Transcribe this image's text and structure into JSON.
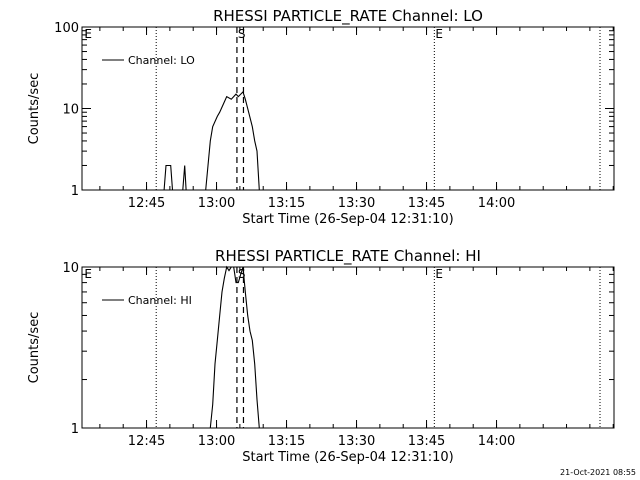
{
  "figure": {
    "footer_timestamp": "21-Oct-2021 08:55",
    "background": "#ffffff",
    "foreground": "#000000"
  },
  "chart_data": [
    {
      "type": "line",
      "title": "RHESSI PARTICLE_RATE Channel: LO",
      "xlabel": "Start Time (26-Sep-04 12:31:10)",
      "ylabel": "Counts/sec",
      "x_unit": "minutes after 12:31:10 (26-Sep-04)",
      "xlim": [
        0,
        114
      ],
      "ylim": [
        1,
        100
      ],
      "yscale": "log",
      "x_ticks": [
        {
          "x": 13.83,
          "label": "12:45"
        },
        {
          "x": 28.83,
          "label": "13:00"
        },
        {
          "x": 43.83,
          "label": "13:15"
        },
        {
          "x": 58.83,
          "label": "13:30"
        },
        {
          "x": 73.83,
          "label": "13:45"
        },
        {
          "x": 88.83,
          "label": "14:00"
        }
      ],
      "y_ticks": [
        {
          "y": 1,
          "label": "1"
        },
        {
          "y": 10,
          "label": "10"
        },
        {
          "y": 100,
          "label": "100"
        }
      ],
      "legend": {
        "label": "Channel: LO",
        "position": "top-left"
      },
      "markers": [
        {
          "x": 0.3,
          "label": "E",
          "style": "none"
        },
        {
          "x": 15.9,
          "label": "",
          "style": "dotted"
        },
        {
          "x": 33.2,
          "label": "S",
          "style": "dashed"
        },
        {
          "x": 34.6,
          "label": "",
          "style": "dashed"
        },
        {
          "x": 75.5,
          "label": "E",
          "style": "dotted"
        },
        {
          "x": 104.3,
          "label": "",
          "style": "none"
        },
        {
          "x": 111.0,
          "label": "",
          "style": "dotted"
        }
      ],
      "series": [
        {
          "points": [
            [
              17.6,
              1
            ],
            [
              18.0,
              2
            ],
            [
              19.0,
              2
            ],
            [
              19.4,
              1
            ],
            [
              21.6,
              1
            ],
            [
              22.0,
              2
            ],
            [
              22.3,
              1
            ],
            [
              26.5,
              1
            ],
            [
              27.0,
              2
            ],
            [
              27.5,
              4
            ],
            [
              28.0,
              6
            ],
            [
              29.0,
              8
            ],
            [
              29.5,
              9
            ],
            [
              30.5,
              12
            ],
            [
              31.0,
              14
            ],
            [
              32.0,
              13
            ],
            [
              33.0,
              15
            ],
            [
              33.5,
              14
            ],
            [
              34.5,
              16
            ],
            [
              35.0,
              13
            ],
            [
              35.5,
              10
            ],
            [
              36.5,
              6
            ],
            [
              37.0,
              4
            ],
            [
              37.5,
              3
            ],
            [
              38.0,
              1
            ]
          ]
        }
      ]
    },
    {
      "type": "line",
      "title": "RHESSI PARTICLE_RATE Channel: HI",
      "xlabel": "Start Time (26-Sep-04 12:31:10)",
      "ylabel": "Counts/sec",
      "x_unit": "minutes after 12:31:10 (26-Sep-04)",
      "xlim": [
        0,
        114
      ],
      "ylim": [
        1,
        10
      ],
      "yscale": "log",
      "x_ticks": [
        {
          "x": 13.83,
          "label": "12:45"
        },
        {
          "x": 28.83,
          "label": "13:00"
        },
        {
          "x": 43.83,
          "label": "13:15"
        },
        {
          "x": 58.83,
          "label": "13:30"
        },
        {
          "x": 73.83,
          "label": "13:45"
        },
        {
          "x": 88.83,
          "label": "14:00"
        }
      ],
      "y_ticks": [
        {
          "y": 1,
          "label": "1"
        },
        {
          "y": 10,
          "label": "10"
        }
      ],
      "legend": {
        "label": "Channel: HI",
        "position": "top-left"
      },
      "markers": [
        {
          "x": 0.3,
          "label": "E",
          "style": "none"
        },
        {
          "x": 15.9,
          "label": "",
          "style": "dotted"
        },
        {
          "x": 33.2,
          "label": "S",
          "style": "dashed"
        },
        {
          "x": 34.6,
          "label": "",
          "style": "dashed"
        },
        {
          "x": 75.5,
          "label": "E",
          "style": "dotted"
        },
        {
          "x": 104.3,
          "label": "",
          "style": "none"
        },
        {
          "x": 111.0,
          "label": "",
          "style": "dotted"
        }
      ],
      "series": [
        {
          "points": [
            [
              27.5,
              1
            ],
            [
              28.0,
              1.4
            ],
            [
              28.5,
              2.5
            ],
            [
              29.0,
              3.5
            ],
            [
              29.5,
              5
            ],
            [
              30.0,
              7
            ],
            [
              30.5,
              8.5
            ],
            [
              31.0,
              10
            ],
            [
              31.5,
              9.5
            ],
            [
              32.0,
              10
            ],
            [
              32.5,
              10
            ],
            [
              33.0,
              8
            ],
            [
              33.5,
              8
            ],
            [
              34.0,
              9
            ],
            [
              34.5,
              10
            ],
            [
              35.0,
              7
            ],
            [
              35.5,
              5
            ],
            [
              36.0,
              4
            ],
            [
              36.5,
              3.5
            ],
            [
              37.0,
              2.5
            ],
            [
              37.5,
              1.5
            ],
            [
              38.0,
              1
            ]
          ]
        }
      ]
    }
  ]
}
